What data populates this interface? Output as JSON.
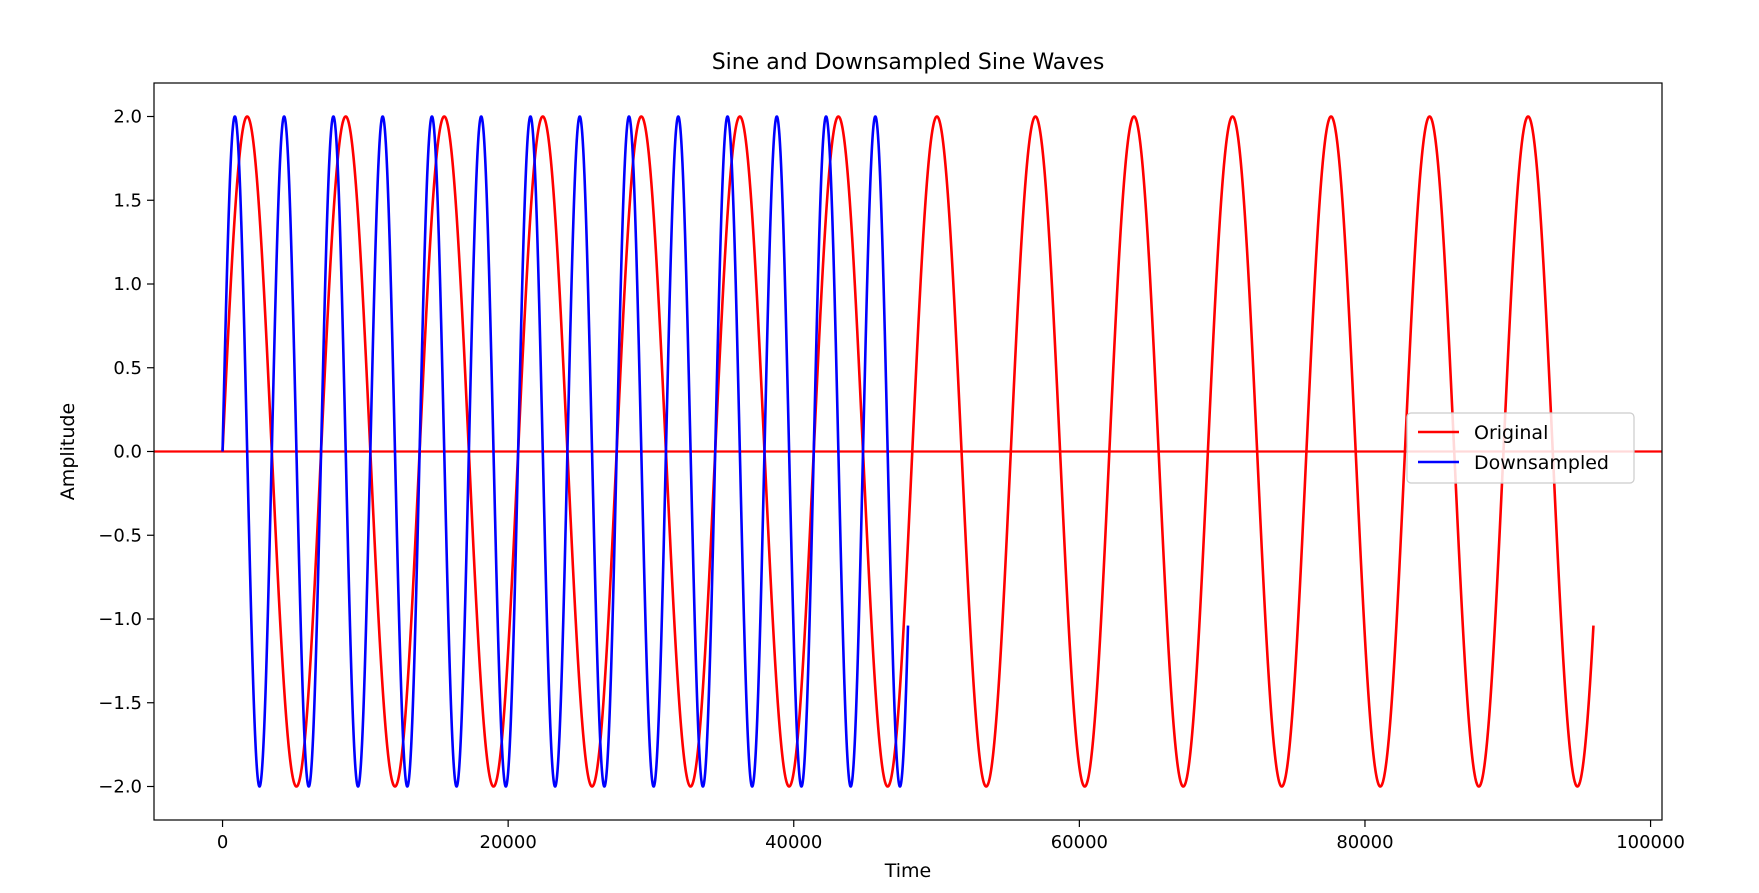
{
  "chart_data": {
    "type": "line",
    "title": "Sine and Downsampled Sine Waves",
    "xlabel": "Time",
    "ylabel": "Amplitude",
    "xlim": [
      -4800,
      100800
    ],
    "ylim": [
      -2.2,
      2.2
    ],
    "xticks": [
      0,
      20000,
      40000,
      60000,
      80000,
      100000
    ],
    "xtick_labels": [
      "0",
      "20000",
      "40000",
      "60000",
      "80000",
      "100000"
    ],
    "yticks": [
      2.0,
      1.5,
      1.0,
      0.5,
      0.0,
      -0.5,
      -1.0,
      -1.5,
      -2.0
    ],
    "ytick_labels": [
      "2.0",
      "1.5",
      "1.0",
      "0.5",
      "0.0",
      "−0.5",
      "−1.0",
      "−1.5",
      "−2.0"
    ],
    "grid": false,
    "legend_position": "center-right",
    "series": [
      {
        "name": "Original",
        "color": "#ff0000",
        "function": "2*sin(2*pi*x/6900)",
        "x_range": [
          0,
          96000
        ],
        "period": 6900,
        "amplitude": 2.0
      },
      {
        "name": "Downsampled",
        "color": "#0000ff",
        "function": "2*sin(2*pi*x/3450)",
        "x_range": [
          0,
          48000
        ],
        "period": 3450,
        "amplitude": 2.0
      }
    ],
    "reference_line": {
      "y": 0.0,
      "color": "#ff0000"
    }
  }
}
